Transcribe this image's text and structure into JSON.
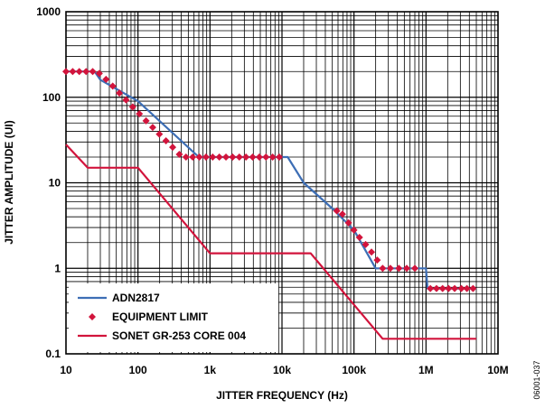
{
  "chart_data": {
    "type": "line",
    "title": "",
    "xlabel": "JITTER FREQUENCY (Hz)",
    "ylabel": "JITTER AMPLITUDE (UI)",
    "x_scale": "log",
    "y_scale": "log",
    "xlim": [
      10,
      10000000
    ],
    "ylim": [
      0.1,
      1000
    ],
    "grid": true,
    "legend_position": "bottom-left",
    "x_tick_labels": [
      {
        "value": 10,
        "label": "10"
      },
      {
        "value": 100,
        "label": "100"
      },
      {
        "value": 1000,
        "label": "1k"
      },
      {
        "value": 10000,
        "label": "10k"
      },
      {
        "value": 100000,
        "label": "100k"
      },
      {
        "value": 1000000,
        "label": "1M"
      },
      {
        "value": 10000000,
        "label": "10M"
      }
    ],
    "y_tick_labels": [
      {
        "value": 0.1,
        "label": "0.1"
      },
      {
        "value": 1,
        "label": "1"
      },
      {
        "value": 10,
        "label": "10"
      },
      {
        "value": 100,
        "label": "100"
      },
      {
        "value": 1000,
        "label": "1000"
      }
    ],
    "series": [
      {
        "name": "ADN2817",
        "color": "#3d6eb5",
        "style": "line",
        "x": [
          10,
          25,
          30,
          100,
          700,
          1000,
          10000,
          12000,
          20000,
          50000,
          100000,
          200000,
          300000,
          700000,
          1000000,
          1050000,
          5000000
        ],
        "y": [
          200,
          200,
          160,
          90,
          20,
          20,
          20,
          20,
          10,
          5,
          2.8,
          1,
          1,
          1,
          1,
          0.58,
          0.58
        ]
      },
      {
        "name": "EQUIPMENT LIMIT",
        "color": "#d2143c",
        "style": "markers",
        "x": [
          10,
          12.4,
          15.3,
          19,
          23.5,
          29,
          36,
          44.6,
          55.2,
          68.3,
          84.5,
          104.6,
          129.4,
          160,
          198,
          245,
          303,
          375,
          464,
          575,
          711,
          880,
          1089,
          1348,
          1668,
          2064,
          2554,
          3161,
          3911,
          4840,
          5989,
          7411,
          9171,
          57800,
          69000,
          84000,
          100000,
          119000,
          145000,
          175000,
          210000,
          250000,
          320000,
          420000,
          540000,
          700000,
          1150000,
          1400000,
          1700000,
          2060000,
          2500000,
          3100000,
          3700000,
          4500000
        ],
        "y": [
          200,
          200,
          200,
          200,
          200,
          190,
          162,
          135,
          112,
          93,
          77,
          64,
          53,
          44.5,
          37,
          31,
          26,
          21.5,
          20,
          20,
          20,
          20,
          20,
          20,
          20,
          20,
          20,
          20,
          20,
          20,
          20,
          20,
          20,
          4.7,
          4.3,
          3.4,
          2.8,
          2.3,
          1.9,
          1.55,
          1.25,
          1,
          1,
          1,
          1,
          1,
          0.58,
          0.58,
          0.58,
          0.58,
          0.58,
          0.58,
          0.58,
          0.58
        ]
      },
      {
        "name": "SONET GR-253 CORE 004",
        "color": "#d2143c",
        "style": "line",
        "x": [
          10,
          20,
          100,
          1000,
          25000,
          250000,
          5000000
        ],
        "y": [
          28,
          15,
          15,
          1.5,
          1.5,
          0.15,
          0.15
        ]
      }
    ]
  },
  "figure_id": "06001-037"
}
